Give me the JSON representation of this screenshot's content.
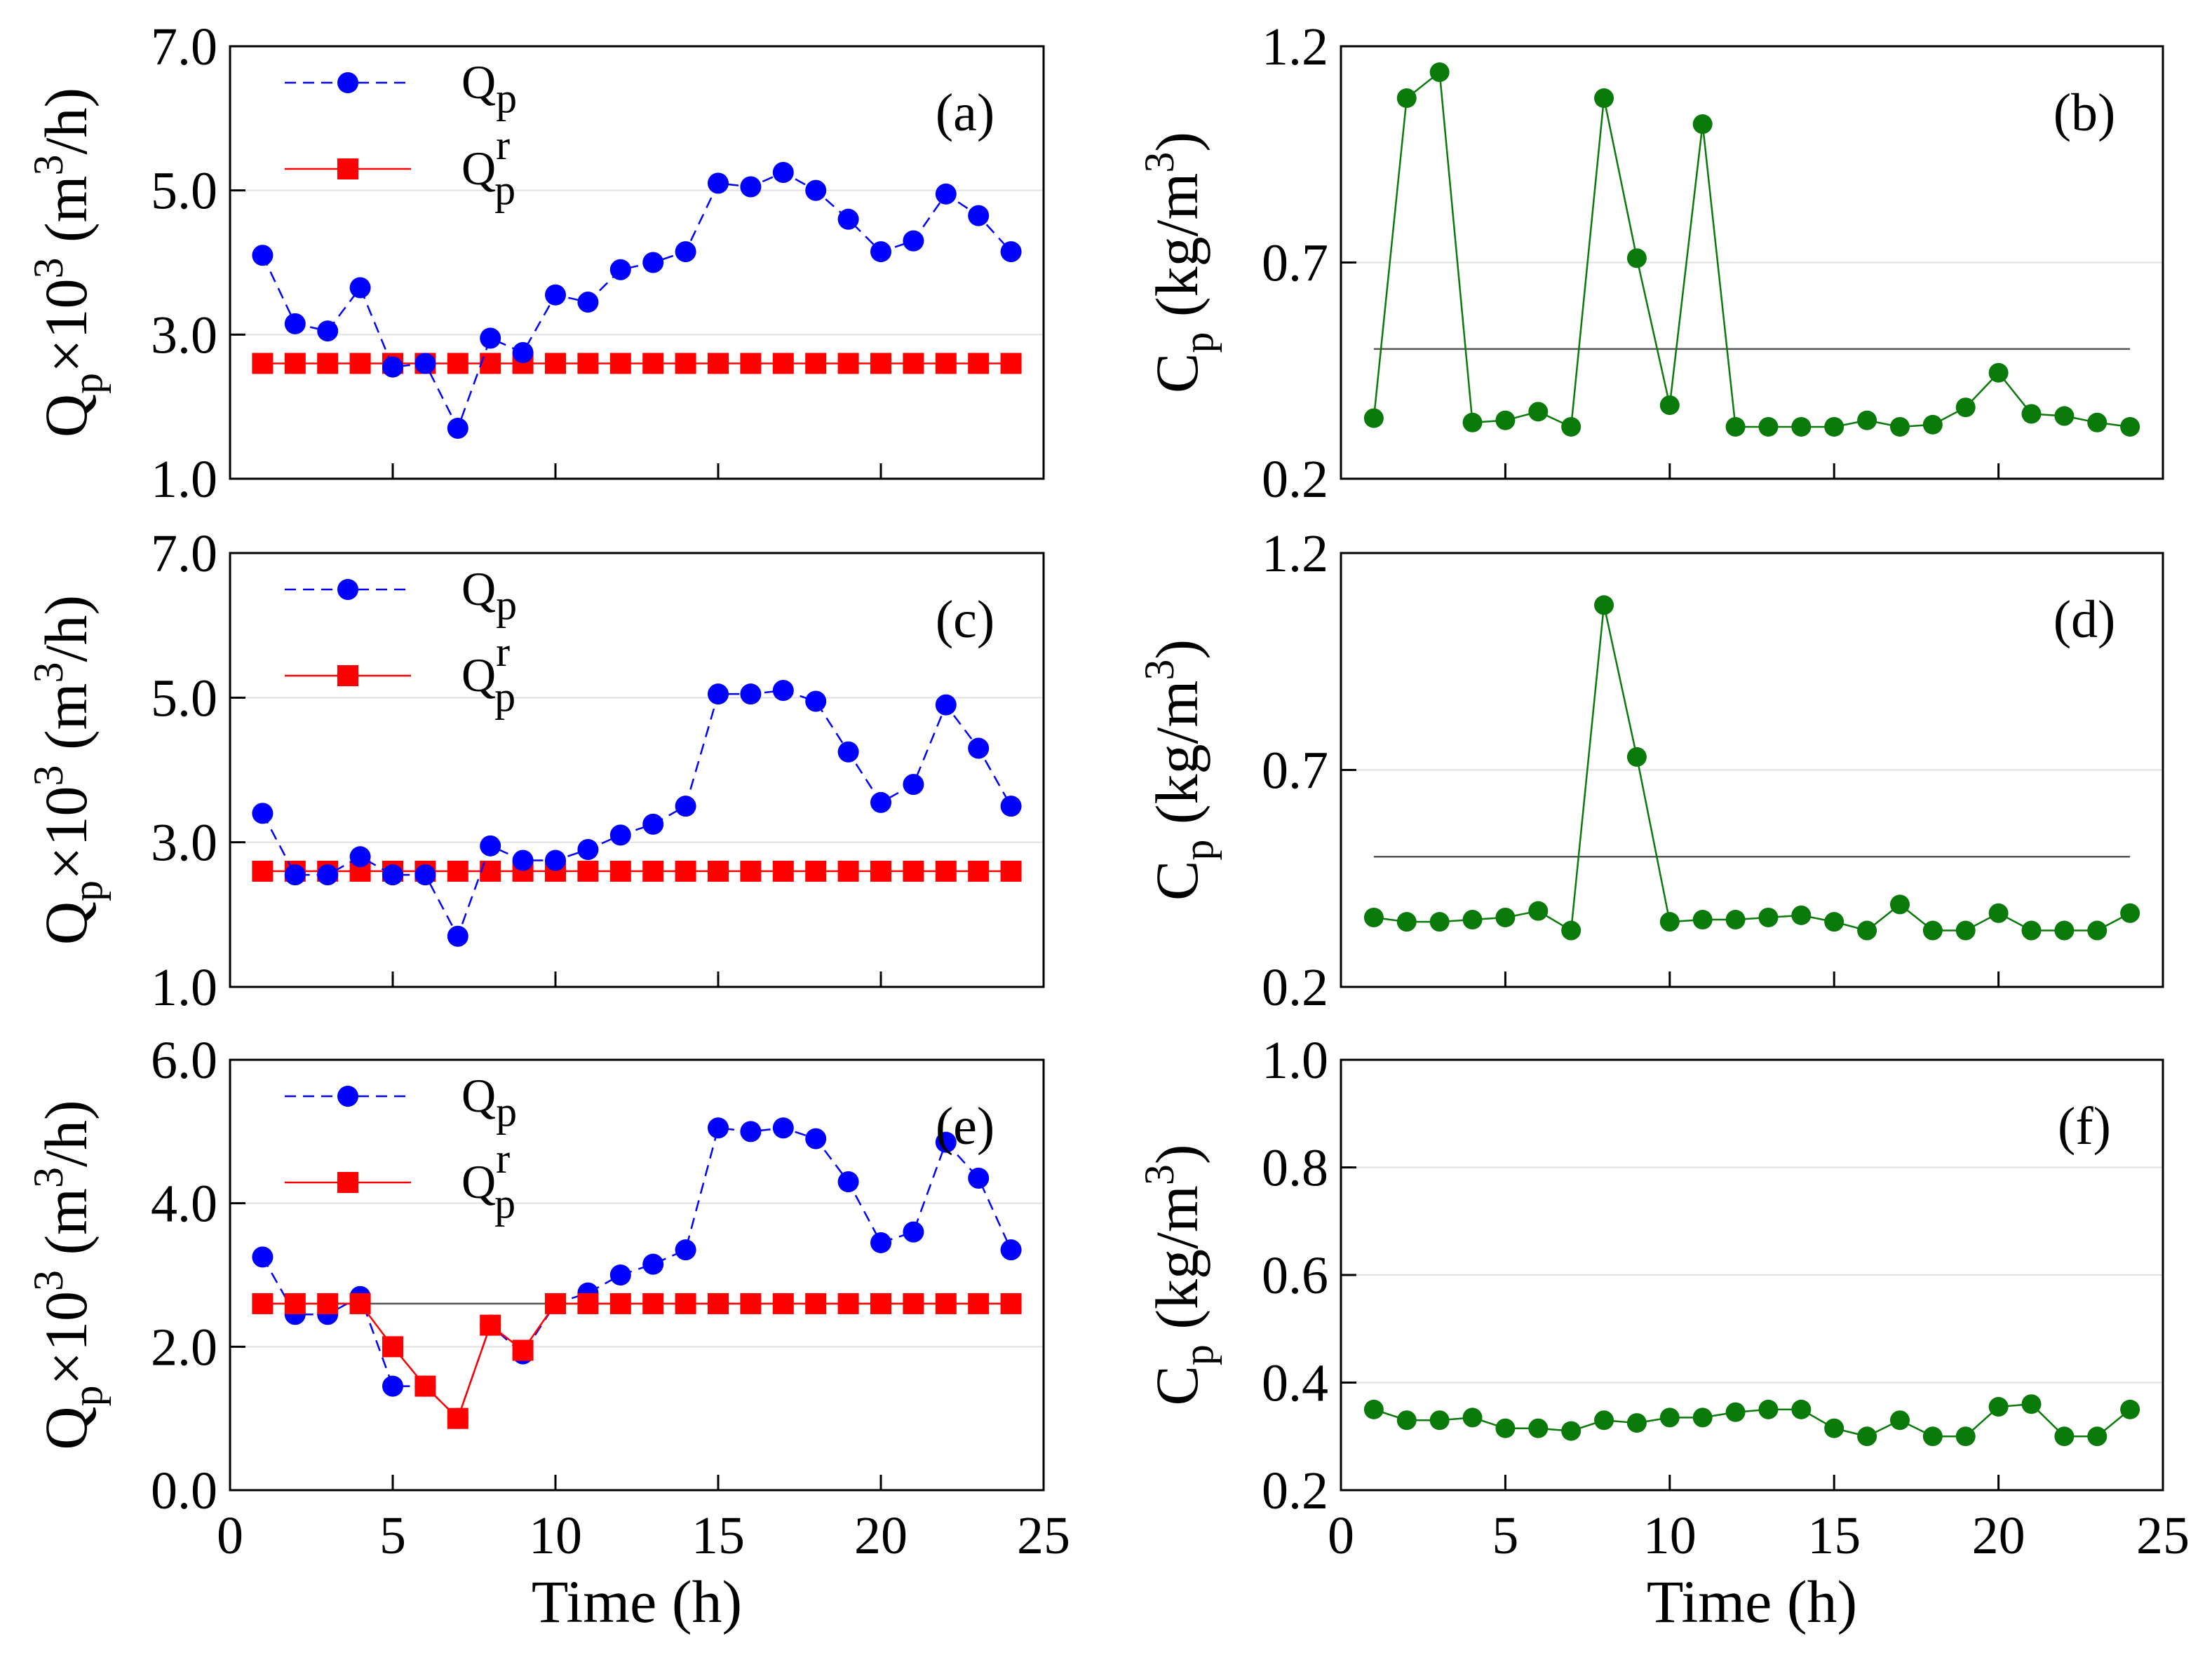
{
  "colors": {
    "q_series": "#0000ff",
    "qr_series": "#ff0000",
    "c_series": "#0a7a0a",
    "reference_line": "#555555",
    "axis": "#000000",
    "gridline": "#e0e0e0"
  },
  "legend_labels": {
    "q_main": "Q",
    "q_sub": "p",
    "qr_main": "Q",
    "qr_sup": "r",
    "qr_sub": "p"
  },
  "axis_text": {
    "x_label": "Time (h)",
    "q_ylabel": {
      "q": "Q",
      "q_sub": "p",
      "times": "×10",
      "exp": "3",
      "unit_open": " (m",
      "unit_exp": "3",
      "unit_close": "/h)"
    },
    "c_ylabel": {
      "c": "C",
      "c_sub": "p",
      "unit_open": " (kg/m",
      "unit_exp": "3",
      "unit_close": ")"
    }
  },
  "chart_data": [
    {
      "panel": "(a)",
      "type": "line",
      "xlim": [
        0,
        25
      ],
      "ylim": [
        1.0,
        7.0
      ],
      "yticks": [
        "1.0",
        "3.0",
        "5.0",
        "7.0"
      ],
      "xticks": [],
      "legend": "top-left",
      "x": [
        1,
        2,
        3,
        4,
        5,
        6,
        7,
        8,
        9,
        10,
        11,
        12,
        13,
        14,
        15,
        16,
        17,
        18,
        19,
        20,
        21,
        22,
        23,
        24
      ],
      "series": [
        {
          "role": "q",
          "style": "dashed-circle",
          "values": [
            4.1,
            3.15,
            3.05,
            3.65,
            2.55,
            2.6,
            1.7,
            2.95,
            2.75,
            3.55,
            3.45,
            3.9,
            4.0,
            4.15,
            5.1,
            5.05,
            5.25,
            5.0,
            4.6,
            4.15,
            4.3,
            4.95,
            4.65,
            4.15
          ]
        },
        {
          "role": "qr",
          "style": "solid-square",
          "values": [
            2.6,
            2.6,
            2.6,
            2.6,
            2.6,
            2.6,
            2.6,
            2.6,
            2.6,
            2.6,
            2.6,
            2.6,
            2.6,
            2.6,
            2.6,
            2.6,
            2.6,
            2.6,
            2.6,
            2.6,
            2.6,
            2.6,
            2.6,
            2.6
          ]
        }
      ]
    },
    {
      "panel": "(b)",
      "type": "line",
      "xlim": [
        0,
        25
      ],
      "ylim": [
        0.2,
        1.2
      ],
      "yticks": [
        "0.2",
        "0.7",
        "1.2"
      ],
      "xticks": [],
      "reference_y": 0.5,
      "x": [
        1,
        2,
        3,
        4,
        5,
        6,
        7,
        8,
        9,
        10,
        11,
        12,
        13,
        14,
        15,
        16,
        17,
        18,
        19,
        20,
        21,
        22,
        23,
        24
      ],
      "series": [
        {
          "role": "c",
          "style": "solid-circle",
          "values": [
            0.34,
            1.08,
            1.14,
            0.33,
            0.335,
            0.355,
            0.32,
            1.08,
            0.71,
            0.37,
            1.02,
            0.32,
            0.32,
            0.32,
            0.32,
            0.335,
            0.32,
            0.325,
            0.365,
            0.445,
            0.35,
            0.345,
            0.33,
            0.32
          ]
        }
      ]
    },
    {
      "panel": "(c)",
      "type": "line",
      "xlim": [
        0,
        25
      ],
      "ylim": [
        1.0,
        7.0
      ],
      "yticks": [
        "1.0",
        "3.0",
        "5.0",
        "7.0"
      ],
      "xticks": [],
      "legend": "top-left",
      "x": [
        1,
        2,
        3,
        4,
        5,
        6,
        7,
        8,
        9,
        10,
        11,
        12,
        13,
        14,
        15,
        16,
        17,
        18,
        19,
        20,
        21,
        22,
        23,
        24
      ],
      "series": [
        {
          "role": "q",
          "style": "dashed-circle",
          "values": [
            3.4,
            2.55,
            2.55,
            2.8,
            2.55,
            2.55,
            1.7,
            2.95,
            2.75,
            2.75,
            2.9,
            3.1,
            3.25,
            3.5,
            5.05,
            5.05,
            5.1,
            4.95,
            4.25,
            3.55,
            3.8,
            4.9,
            4.3,
            3.5
          ]
        },
        {
          "role": "qr",
          "style": "solid-square",
          "values": [
            2.6,
            2.6,
            2.6,
            2.6,
            2.6,
            2.6,
            2.6,
            2.6,
            2.6,
            2.6,
            2.6,
            2.6,
            2.6,
            2.6,
            2.6,
            2.6,
            2.6,
            2.6,
            2.6,
            2.6,
            2.6,
            2.6,
            2.6,
            2.6
          ]
        }
      ]
    },
    {
      "panel": "(d)",
      "type": "line",
      "xlim": [
        0,
        25
      ],
      "ylim": [
        0.2,
        1.2
      ],
      "yticks": [
        "0.2",
        "0.7",
        "1.2"
      ],
      "xticks": [],
      "reference_y": 0.5,
      "x": [
        1,
        2,
        3,
        4,
        5,
        6,
        7,
        8,
        9,
        10,
        11,
        12,
        13,
        14,
        15,
        16,
        17,
        18,
        19,
        20,
        21,
        22,
        23,
        24
      ],
      "series": [
        {
          "role": "c",
          "style": "solid-circle",
          "values": [
            0.36,
            0.35,
            0.35,
            0.355,
            0.36,
            0.375,
            0.33,
            1.08,
            0.73,
            0.35,
            0.355,
            0.355,
            0.36,
            0.365,
            0.35,
            0.33,
            0.39,
            0.33,
            0.33,
            0.37,
            0.33,
            0.33,
            0.33,
            0.37
          ]
        }
      ]
    },
    {
      "panel": "(e)",
      "type": "line",
      "xlim": [
        0,
        25
      ],
      "ylim": [
        0.0,
        6.0
      ],
      "yticks": [
        "0.0",
        "2.0",
        "4.0",
        "6.0"
      ],
      "xticks": [
        "0",
        "5",
        "10",
        "15",
        "20",
        "25"
      ],
      "legend": "top-left",
      "reference_y": 2.6,
      "x": [
        1,
        2,
        3,
        4,
        5,
        6,
        7,
        8,
        9,
        10,
        11,
        12,
        13,
        14,
        15,
        16,
        17,
        18,
        19,
        20,
        21,
        22,
        23,
        24
      ],
      "series": [
        {
          "role": "q",
          "style": "dashed-circle",
          "values": [
            3.25,
            2.45,
            2.45,
            2.7,
            1.45,
            1.45,
            1.0,
            2.3,
            1.9,
            2.6,
            2.75,
            3.0,
            3.15,
            3.35,
            5.05,
            5.0,
            5.05,
            4.9,
            4.3,
            3.45,
            3.6,
            4.85,
            4.35,
            3.35
          ]
        },
        {
          "role": "qr",
          "style": "solid-square",
          "values": [
            2.6,
            2.6,
            2.6,
            2.6,
            2.0,
            1.45,
            1.0,
            2.3,
            1.95,
            2.6,
            2.6,
            2.6,
            2.6,
            2.6,
            2.6,
            2.6,
            2.6,
            2.6,
            2.6,
            2.6,
            2.6,
            2.6,
            2.6,
            2.6
          ]
        }
      ]
    },
    {
      "panel": "(f)",
      "type": "line",
      "xlim": [
        0,
        25
      ],
      "ylim": [
        0.2,
        1.0
      ],
      "yticks": [
        "0.2",
        "0.4",
        "0.6",
        "0.8",
        "1.0"
      ],
      "xticks": [
        "0",
        "5",
        "10",
        "15",
        "20",
        "25"
      ],
      "x": [
        1,
        2,
        3,
        4,
        5,
        6,
        7,
        8,
        9,
        10,
        11,
        12,
        13,
        14,
        15,
        16,
        17,
        18,
        19,
        20,
        21,
        22,
        23,
        24
      ],
      "series": [
        {
          "role": "c",
          "style": "solid-circle",
          "values": [
            0.35,
            0.33,
            0.33,
            0.335,
            0.315,
            0.315,
            0.31,
            0.33,
            0.325,
            0.335,
            0.335,
            0.345,
            0.35,
            0.35,
            0.315,
            0.3,
            0.33,
            0.3,
            0.3,
            0.355,
            0.36,
            0.3,
            0.3,
            0.35
          ]
        }
      ]
    }
  ]
}
